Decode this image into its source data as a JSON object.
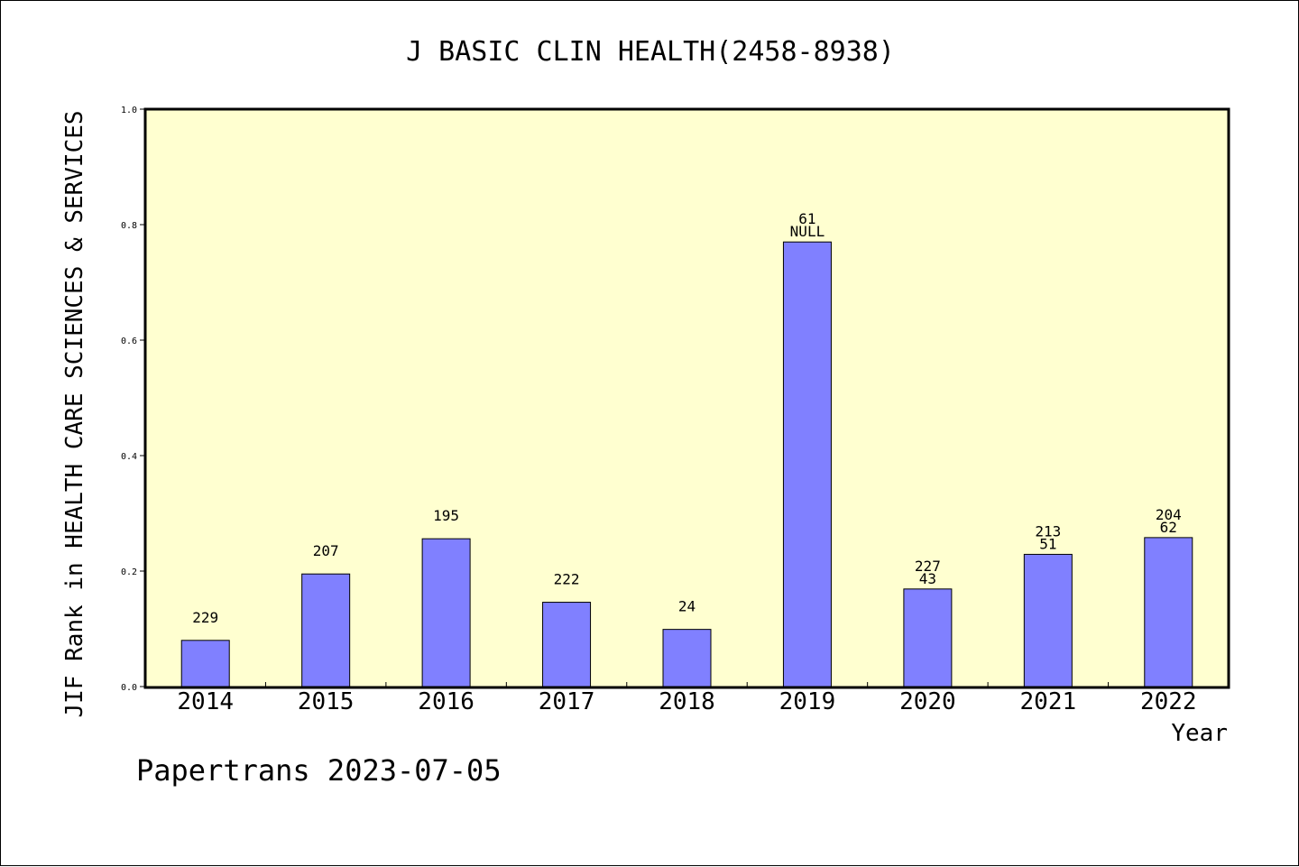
{
  "chart_data": {
    "type": "bar",
    "title": "J BASIC CLIN HEALTH(2458-8938)",
    "xlabel": "Year",
    "ylabel": "JIF Rank in HEALTH CARE SCIENCES & SERVICES",
    "categories": [
      "2014",
      "2015",
      "2016",
      "2017",
      "2018",
      "2019",
      "2020",
      "2021",
      "2022"
    ],
    "values": [
      0.08,
      0.195,
      0.256,
      0.146,
      0.099,
      0.77,
      0.169,
      0.229,
      0.258
    ],
    "label_top": [
      "229",
      "207",
      "195",
      "222",
      "24",
      "61",
      "227",
      "213",
      "204"
    ],
    "label_bottom": [
      "",
      "",
      "",
      "",
      "",
      "NULL",
      "43",
      "51",
      "62"
    ],
    "ylim": [
      0,
      1.0
    ],
    "yticks": [
      "0.0",
      "0.2",
      "0.4",
      "0.6",
      "0.8",
      "1.0"
    ],
    "grid": false,
    "bar_color": "#8080ff",
    "plot_background": "#ffffd0"
  },
  "footer": "Papertrans 2023-07-05"
}
